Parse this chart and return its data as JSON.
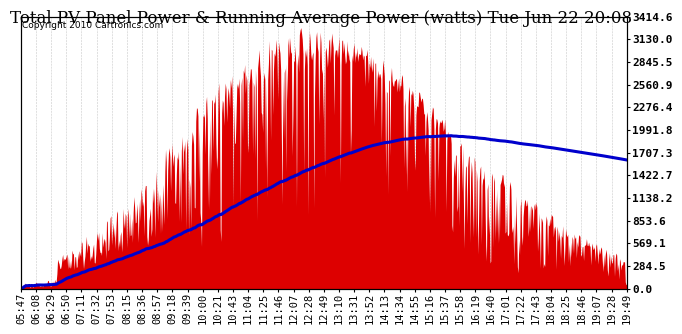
{
  "title": "Total PV Panel Power & Running Average Power (watts) Tue Jun 22 20:08",
  "copyright": "Copyright 2010 Cartronics.com",
  "background_color": "#ffffff",
  "plot_bg_color": "#ffffff",
  "bar_color": "#dd0000",
  "line_color": "#0000cc",
  "y_ticks": [
    0.0,
    284.5,
    569.1,
    853.6,
    1138.2,
    1422.7,
    1707.3,
    1991.8,
    2276.4,
    2560.9,
    2845.5,
    3130.0,
    3414.6
  ],
  "x_labels": [
    "05:47",
    "06:08",
    "06:29",
    "06:50",
    "07:11",
    "07:32",
    "07:53",
    "08:15",
    "08:36",
    "08:57",
    "09:18",
    "09:39",
    "10:00",
    "10:21",
    "10:43",
    "11:04",
    "11:25",
    "11:46",
    "12:07",
    "12:28",
    "12:49",
    "13:10",
    "13:31",
    "13:52",
    "14:13",
    "14:34",
    "14:55",
    "15:16",
    "15:37",
    "15:58",
    "16:19",
    "16:40",
    "17:01",
    "17:22",
    "17:43",
    "18:04",
    "18:25",
    "18:46",
    "19:07",
    "19:28",
    "19:49"
  ],
  "y_max": 3414.6,
  "grid_color": "#c8c8c8",
  "title_fontsize": 12,
  "copyright_fontsize": 6.5,
  "tick_fontsize": 7.5
}
